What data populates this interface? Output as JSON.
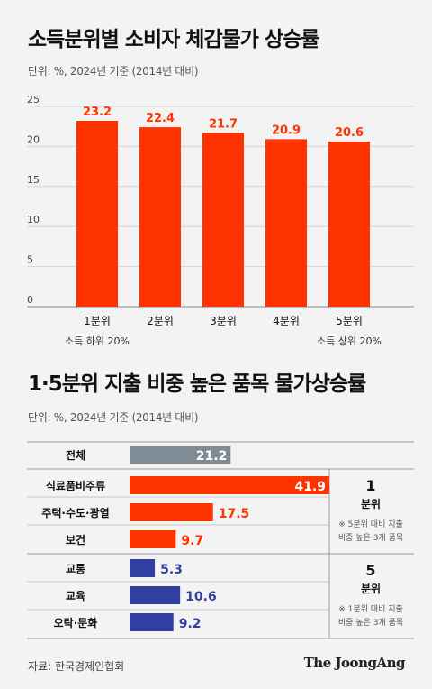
{
  "titles": {
    "chart1": "소득분위별 소비자 체감물가 상승률",
    "chart2": "1·5분위 지출 비중 높은 품목 물가상승률"
  },
  "units": {
    "chart1": "단위: %, 2024년 기준 (2014년 대비)",
    "chart2": "단위: %, 2024년 기준 (2014년 대비)"
  },
  "colors": {
    "red": "#ff3300",
    "gray": "#7f8c95",
    "blue": "#3140a0",
    "background": "#f3f3f3"
  },
  "chart_data": [
    {
      "type": "bar",
      "title": "소득분위별 소비자 체감물가 상승률",
      "categories": [
        "1분위",
        "2분위",
        "3분위",
        "4분위",
        "5분위"
      ],
      "sublabels": [
        "소득 하위 20%",
        "",
        "",
        "",
        "소득 상위 20%"
      ],
      "values": [
        23.2,
        22.4,
        21.7,
        20.9,
        20.6
      ],
      "ylim": [
        0,
        25
      ],
      "yticks": [
        0,
        5,
        10,
        15,
        20,
        25
      ],
      "grid": true
    },
    {
      "type": "bar",
      "orientation": "horizontal",
      "title": "1·5분위 지출 비중 높은 품목 물가상승률",
      "categories": [
        "전체",
        "식료품비주류",
        "주택·수도·광열",
        "보건",
        "교통",
        "교육",
        "오락·문화"
      ],
      "values": [
        21.2,
        41.9,
        17.5,
        9.7,
        5.3,
        10.6,
        9.2
      ],
      "groups": [
        {
          "label": "1",
          "sublabel": "분위",
          "note": [
            "※ 5분위 대비 지출",
            "비중 높은 3개 품목"
          ]
        },
        {
          "label": "5",
          "sublabel": "분위",
          "note": [
            "※ 1분위 대비 지출",
            "비중 높은 3개 품목"
          ]
        }
      ]
    }
  ],
  "footer": {
    "source": "자료: 한국경제인협회",
    "logo": "The JoongAng"
  }
}
